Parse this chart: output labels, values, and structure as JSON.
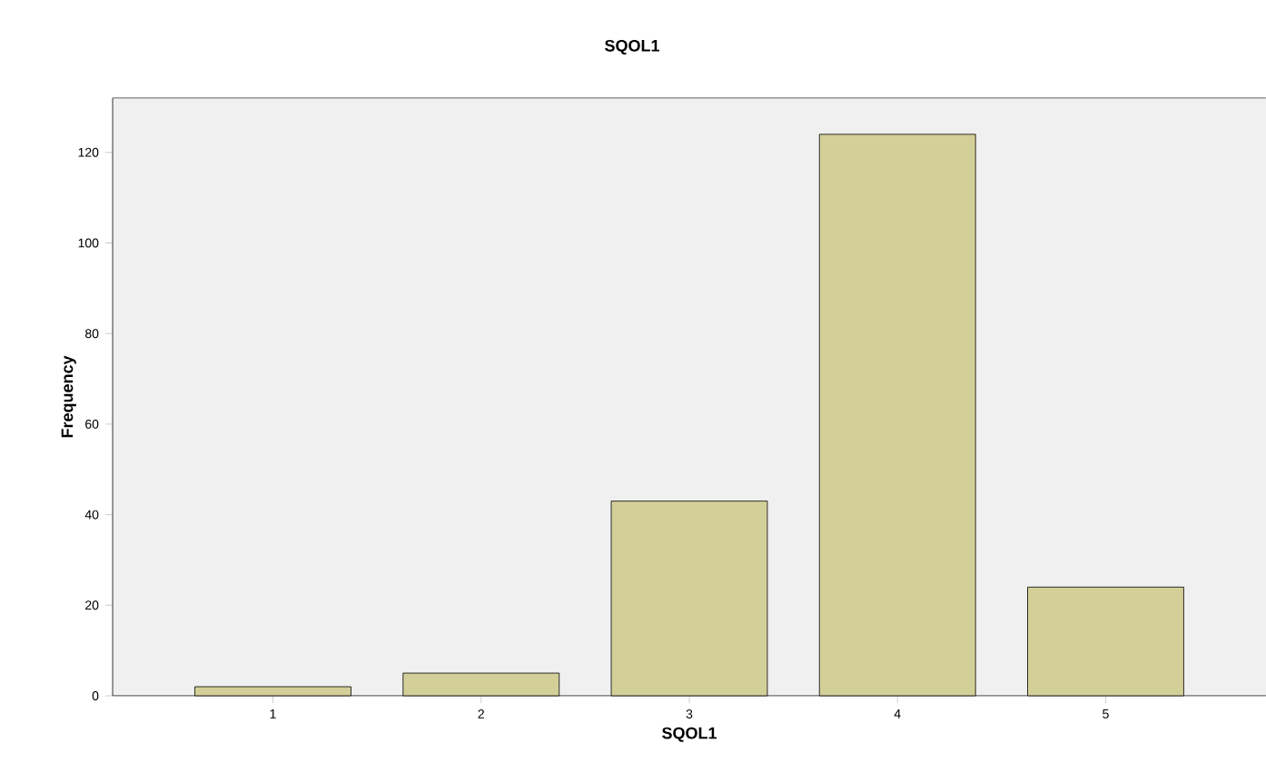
{
  "chart_data": {
    "type": "bar",
    "title": "SQOL1",
    "xlabel": "SQOL1",
    "ylabel": "Frequency",
    "categories": [
      "1",
      "2",
      "3",
      "4",
      "5"
    ],
    "values": [
      2,
      5,
      43,
      124,
      24
    ],
    "color": "#d3cf98",
    "ylim": [
      0,
      132
    ],
    "yticks": [
      0,
      20,
      40,
      60,
      80,
      100,
      120
    ],
    "grid": false
  }
}
